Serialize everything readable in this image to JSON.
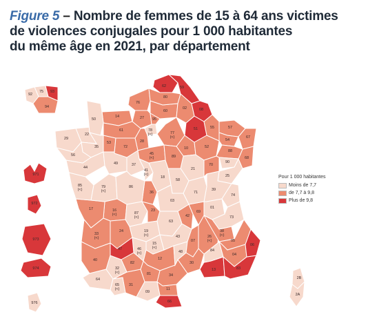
{
  "title": {
    "figure_label": "Figure 5",
    "dash": " – ",
    "line1": "Nombre de femmes de 15 à 64 ans victimes",
    "line2": "de violences conjugales pour 1 000 habitantes",
    "line3": "du même âge en 2021, par département"
  },
  "legend": {
    "title": "Pour 1 000 habitantes",
    "items": [
      {
        "label": "Moins de 7,7",
        "color": "#f7d9cc"
      },
      {
        "label": "de 7,7 à 9,8",
        "color": "#ec8b70"
      },
      {
        "label": "Plus de 9,8",
        "color": "#d8373a"
      }
    ]
  },
  "colors": {
    "low": "#f7d9cc",
    "mid": "#ec8b70",
    "high": "#d8373a",
    "border": "#ffffff"
  },
  "departments": [
    {
      "code": "62",
      "class": "high"
    },
    {
      "code": "59",
      "class": "high"
    },
    {
      "code": "80",
      "class": "mid"
    },
    {
      "code": "02",
      "class": "mid"
    },
    {
      "code": "08",
      "class": "high"
    },
    {
      "code": "76",
      "class": "mid"
    },
    {
      "code": "60",
      "class": "mid"
    },
    {
      "code": "27",
      "class": "mid"
    },
    {
      "code": "95",
      "class": "mid"
    },
    {
      "code": "78",
      "class": "low"
    },
    {
      "code": "51",
      "class": "high"
    },
    {
      "code": "55",
      "class": "mid"
    },
    {
      "code": "57",
      "class": "mid"
    },
    {
      "code": "67",
      "class": "mid"
    },
    {
      "code": "14",
      "class": "mid"
    },
    {
      "code": "50",
      "class": "low"
    },
    {
      "code": "61",
      "class": "mid"
    },
    {
      "code": "28",
      "class": "mid"
    },
    {
      "code": "77",
      "class": "mid"
    },
    {
      "code": "10",
      "class": "mid"
    },
    {
      "code": "52",
      "class": "mid"
    },
    {
      "code": "54",
      "class": "mid"
    },
    {
      "code": "88",
      "class": "mid"
    },
    {
      "code": "68",
      "class": "mid"
    },
    {
      "code": "29",
      "class": "low"
    },
    {
      "code": "22",
      "class": "low"
    },
    {
      "code": "35",
      "class": "low"
    },
    {
      "code": "53",
      "class": "mid"
    },
    {
      "code": "72",
      "class": "mid"
    },
    {
      "code": "45",
      "class": "mid"
    },
    {
      "code": "89",
      "class": "mid"
    },
    {
      "code": "21",
      "class": "low"
    },
    {
      "code": "70",
      "class": "mid"
    },
    {
      "code": "90",
      "class": "low"
    },
    {
      "code": "25",
      "class": "low"
    },
    {
      "code": "56",
      "class": "low"
    },
    {
      "code": "44",
      "class": "low"
    },
    {
      "code": "49",
      "class": "low"
    },
    {
      "code": "37",
      "class": "low"
    },
    {
      "code": "41",
      "class": "low"
    },
    {
      "code": "18",
      "class": "low"
    },
    {
      "code": "58",
      "class": "low"
    },
    {
      "code": "71",
      "class": "low"
    },
    {
      "code": "39",
      "class": "low"
    },
    {
      "code": "85",
      "class": "low"
    },
    {
      "code": "79",
      "class": "low"
    },
    {
      "code": "86",
      "class": "low"
    },
    {
      "code": "36",
      "class": "mid"
    },
    {
      "code": "03",
      "class": "low"
    },
    {
      "code": "01",
      "class": "low"
    },
    {
      "code": "74",
      "class": "low"
    },
    {
      "code": "17",
      "class": "mid"
    },
    {
      "code": "16",
      "class": "mid"
    },
    {
      "code": "87",
      "class": "low"
    },
    {
      "code": "23",
      "class": "mid"
    },
    {
      "code": "63",
      "class": "low"
    },
    {
      "code": "42",
      "class": "mid"
    },
    {
      "code": "69",
      "class": "mid"
    },
    {
      "code": "73",
      "class": "low"
    },
    {
      "code": "33",
      "class": "mid"
    },
    {
      "code": "24",
      "class": "mid"
    },
    {
      "code": "19",
      "class": "low"
    },
    {
      "code": "15",
      "class": "low"
    },
    {
      "code": "43",
      "class": "low"
    },
    {
      "code": "07",
      "class": "mid"
    },
    {
      "code": "26",
      "class": "mid"
    },
    {
      "code": "38",
      "class": "mid"
    },
    {
      "code": "05",
      "class": "mid"
    },
    {
      "code": "47",
      "class": "high"
    },
    {
      "code": "46",
      "class": "low"
    },
    {
      "code": "12",
      "class": "mid"
    },
    {
      "code": "48",
      "class": "low"
    },
    {
      "code": "30",
      "class": "mid"
    },
    {
      "code": "84",
      "class": "low"
    },
    {
      "code": "04",
      "class": "mid"
    },
    {
      "code": "06",
      "class": "high"
    },
    {
      "code": "40",
      "class": "mid"
    },
    {
      "code": "32",
      "class": "low"
    },
    {
      "code": "82",
      "class": "mid"
    },
    {
      "code": "81",
      "class": "mid"
    },
    {
      "code": "34",
      "class": "mid"
    },
    {
      "code": "13",
      "class": "high"
    },
    {
      "code": "83",
      "class": "high"
    },
    {
      "code": "64",
      "class": "low"
    },
    {
      "code": "65",
      "class": "low"
    },
    {
      "code": "31",
      "class": "mid"
    },
    {
      "code": "09",
      "class": "low"
    },
    {
      "code": "11",
      "class": "mid"
    },
    {
      "code": "66",
      "class": "high"
    },
    {
      "code": "2B",
      "class": "low"
    },
    {
      "code": "2A",
      "class": "low"
    },
    {
      "code": "92",
      "class": "low"
    },
    {
      "code": "75",
      "class": "low"
    },
    {
      "code": "93",
      "class": "high"
    },
    {
      "code": "94",
      "class": "mid"
    },
    {
      "code": "971",
      "class": "high"
    },
    {
      "code": "972",
      "class": "high"
    },
    {
      "code": "973",
      "class": "high"
    },
    {
      "code": "974",
      "class": "high"
    },
    {
      "code": "976",
      "class": "low"
    }
  ],
  "small_marker": "(<)"
}
